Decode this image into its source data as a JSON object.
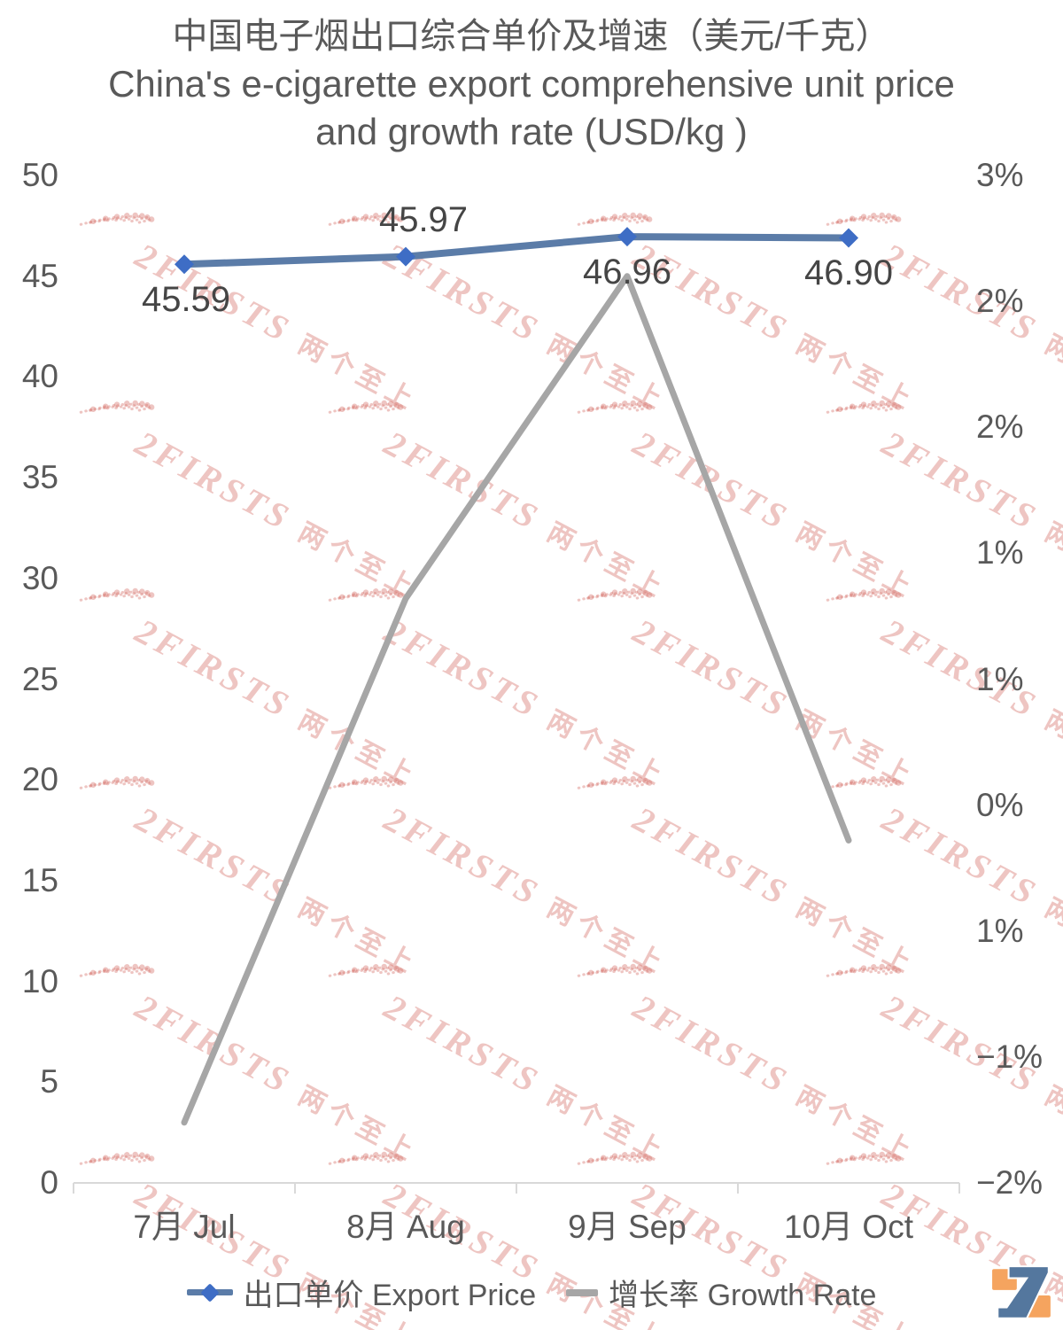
{
  "chart_data": {
    "type": "line",
    "title": "中国电子烟出口综合单价及增速（美元/千克）",
    "subtitle": "China's e-cigarette export comprehensive unit price and growth rate (USD/kg )",
    "categories": [
      "7月 Jul",
      "8月 Aug",
      "9月 Sep",
      "10月 Oct"
    ],
    "series": [
      {
        "name": "出口单价 Export Price",
        "axis": "left",
        "marker": "diamond",
        "color": "#5B7CA8",
        "marker_color": "#3E6DC5",
        "values": [
          45.59,
          45.97,
          46.96,
          46.9
        ],
        "data_labels": [
          "45.59",
          "45.97",
          "46.96",
          "46.90"
        ],
        "label_position": [
          "below",
          "above",
          "below",
          "below"
        ]
      },
      {
        "name": "增长率 Growth Rate",
        "axis": "right",
        "marker": "none",
        "color": "#A6A6A6",
        "values_percent_estimated": [
          -1.7,
          0.9,
          2.5,
          -0.3
        ]
      }
    ],
    "left_axis": {
      "min": 0,
      "max": 50,
      "tick_step": 5,
      "tick_labels": [
        "50",
        "45",
        "40",
        "35",
        "30",
        "25",
        "20",
        "15",
        "10",
        "5",
        "0"
      ]
    },
    "right_axis": {
      "min_percent": -2,
      "max_percent": 3,
      "tick_labels": [
        "3%",
        "2%",
        "2%",
        "1%",
        "1%",
        "0%",
        "1%",
        "−1%",
        "−2%"
      ]
    },
    "grid": "off",
    "legend_position": "bottom"
  },
  "watermark": {
    "brand": "2FIRSTS",
    "cn": "两个至上"
  },
  "colors": {
    "title_text": "#595959",
    "axis_text": "#595959",
    "data_label_text": "#454545",
    "axis_line": "#D9D9D9",
    "price_line": "#5B7CA8",
    "price_marker": "#3E6DC5",
    "growth_line": "#A6A6A6",
    "watermark": "#D6746D",
    "logo_orange": "#F5A45F",
    "logo_blue": "#54779E"
  }
}
